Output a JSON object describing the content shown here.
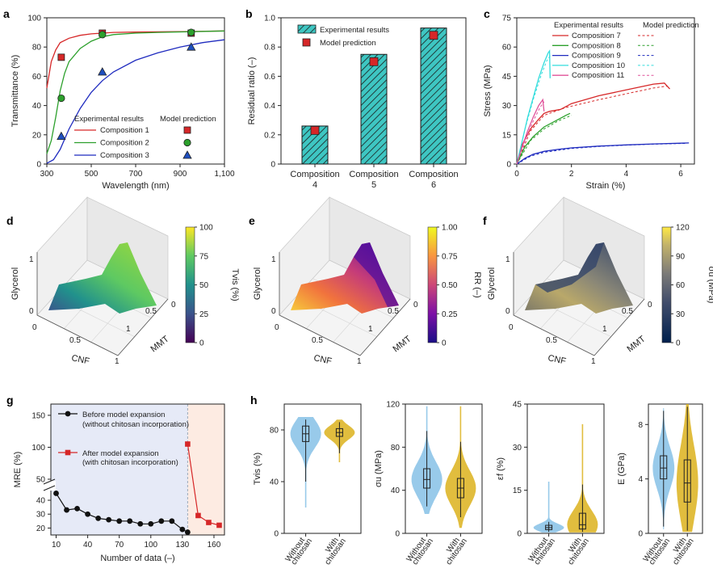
{
  "chart_data": [
    {
      "panel": "a",
      "type": "line",
      "xlabel": "Wavelength (nm)",
      "ylabel": "Transmittance (%)",
      "xlim": [
        300,
        1100
      ],
      "ylim": [
        0,
        100
      ],
      "xticks": [
        "300",
        "500",
        "700",
        "900",
        "1,100"
      ],
      "yticks": [
        "0",
        "20",
        "40",
        "60",
        "80",
        "100"
      ],
      "legend_exp": "Experimental results",
      "legend_model": "Model prediction",
      "series": [
        {
          "name": "Composition 1",
          "color": "#d62728",
          "marker": "square",
          "color_model": "#d62728",
          "x": [
            300,
            320,
            340,
            360,
            400,
            450,
            500,
            550,
            600,
            700,
            800,
            950,
            1100
          ],
          "y": [
            52,
            70,
            78,
            83,
            86,
            88,
            89,
            89.5,
            90,
            90.2,
            90.4,
            90.6,
            91
          ],
          "model_x": [
            365,
            550,
            950
          ],
          "model_y": [
            73,
            89.5,
            89.5
          ]
        },
        {
          "name": "Composition 2",
          "color": "#2ca02c",
          "marker": "circle",
          "color_model": "#2ca02c",
          "x": [
            300,
            320,
            340,
            360,
            380,
            400,
            450,
            500,
            550,
            600,
            700,
            800,
            950,
            1100
          ],
          "y": [
            7,
            16,
            32,
            50,
            62,
            70,
            79,
            84,
            87,
            88.5,
            89.5,
            90,
            90.5,
            91
          ],
          "model_x": [
            365,
            550,
            950
          ],
          "model_y": [
            45,
            88.5,
            90
          ]
        },
        {
          "name": "Composition 3",
          "color": "#1f2bbf",
          "marker": "triangle",
          "color_model": "#1f4fbf",
          "x": [
            300,
            330,
            360,
            400,
            450,
            500,
            550,
            600,
            700,
            800,
            900,
            1000,
            1100
          ],
          "y": [
            0.5,
            3,
            10,
            24,
            38,
            49,
            57,
            63,
            71,
            76,
            80,
            83,
            85
          ],
          "model_x": [
            365,
            550,
            950
          ],
          "model_y": [
            19,
            63,
            80
          ]
        }
      ]
    },
    {
      "panel": "b",
      "type": "bar",
      "ylabel": "Residual ratio (–)",
      "ylim": [
        0,
        1.0
      ],
      "yticks": [
        "0",
        "0.2",
        "0.4",
        "0.6",
        "0.8",
        "1.0"
      ],
      "categories": [
        "Composition 4",
        "Composition 5",
        "Composition 6"
      ],
      "cat_line1": [
        "Composition",
        "Composition",
        "Composition"
      ],
      "cat_line2": [
        "4",
        "5",
        "6"
      ],
      "series": [
        {
          "name": "Experimental results",
          "values": [
            0.26,
            0.75,
            0.93
          ],
          "color": "#3ec6c2"
        },
        {
          "name": "Model prediction",
          "values": [
            0.23,
            0.7,
            0.88
          ],
          "color": "#d62728"
        }
      ]
    },
    {
      "panel": "c",
      "type": "line",
      "xlabel": "Strain (%)",
      "ylabel": "Stress (MPa)",
      "xlim": [
        0,
        6.5
      ],
      "ylim": [
        0,
        75
      ],
      "xticks": [
        "0",
        "2",
        "4",
        "6"
      ],
      "yticks": [
        "0",
        "15",
        "30",
        "45",
        "60",
        "75"
      ],
      "legend_exp": "Experimental results",
      "legend_model": "Model prediction",
      "series": [
        {
          "name": "Composition 7",
          "color": "#d62728",
          "x": [
            0,
            0.2,
            0.5,
            0.8,
            1.0,
            1.2,
            1.6,
            2.0,
            3.0,
            4.0,
            5.0,
            5.4,
            5.6
          ],
          "y": [
            0,
            10,
            18,
            23,
            26,
            27,
            28,
            31,
            35,
            38,
            41,
            41.5,
            38.5
          ],
          "model_x": [
            0,
            0.5,
            1.0,
            1.8,
            3.0,
            4.0,
            5.0,
            5.5
          ],
          "model_y": [
            0,
            17,
            25,
            29,
            33,
            36,
            39,
            40
          ]
        },
        {
          "name": "Composition 8",
          "color": "#2ca02c",
          "x": [
            0,
            0.3,
            0.6,
            1.0,
            1.4,
            1.8,
            1.95
          ],
          "y": [
            0,
            9,
            14,
            19,
            22,
            25,
            26
          ],
          "model_x": [
            0,
            0.5,
            1.0,
            1.5,
            2.0
          ],
          "model_y": [
            0,
            12,
            18,
            22,
            25
          ]
        },
        {
          "name": "Composition 9",
          "color": "#1f2bbf",
          "x": [
            0,
            0.3,
            0.6,
            1.0,
            1.5,
            2.0,
            3.0,
            4.0,
            5.0,
            6.0,
            6.3
          ],
          "y": [
            0,
            3,
            5,
            6.5,
            7.5,
            8.3,
            9.2,
            9.8,
            10.3,
            10.7,
            10.8
          ],
          "model_x": [
            0,
            0.5,
            1.0,
            2.0,
            3.0,
            4.0,
            5.0,
            6.2
          ],
          "model_y": [
            0,
            4,
            6,
            8,
            9,
            9.7,
            10.2,
            10.6
          ]
        },
        {
          "name": "Composition 10",
          "color": "#33dddd",
          "x": [
            0,
            0.2,
            0.4,
            0.6,
            0.8,
            1.0,
            1.15,
            1.2,
            1.22
          ],
          "y": [
            0,
            12,
            24,
            34,
            44,
            52,
            57,
            58,
            44
          ],
          "model_x": [
            0,
            0.3,
            0.6,
            0.9,
            1.1,
            1.25
          ],
          "model_y": [
            0,
            18,
            33,
            46,
            53,
            56
          ]
        },
        {
          "name": "Composition 11",
          "color": "#e0529a",
          "x": [
            0,
            0.2,
            0.4,
            0.6,
            0.8,
            0.95,
            1.0
          ],
          "y": [
            0,
            9,
            17,
            24,
            30,
            33,
            27
          ],
          "model_x": [
            0,
            0.3,
            0.6,
            0.85,
            1.0
          ],
          "model_y": [
            0,
            12,
            22,
            29,
            32
          ]
        }
      ]
    },
    {
      "panel": "d",
      "type": "surface3d",
      "xlabel": "CNF",
      "ylabel": "MMT",
      "zlabel": "Glycerol",
      "cbar_label": "Tvis (%)",
      "cbar_ticks": [
        "0",
        "25",
        "50",
        "75",
        "100"
      ],
      "cbar_range": [
        0,
        100
      ],
      "axis_ticks": {
        "x": [
          "0",
          "0.5",
          "1"
        ],
        "y": [
          "0",
          "0.5",
          "1"
        ],
        "z": [
          "0",
          "1"
        ]
      }
    },
    {
      "panel": "e",
      "type": "surface3d",
      "xlabel": "CNF",
      "ylabel": "MMT",
      "zlabel": "Glycerol",
      "cbar_label": "RR (–)",
      "cbar_ticks": [
        "0",
        "0.25",
        "0.50",
        "0.75",
        "1.00"
      ],
      "cbar_range": [
        0,
        1
      ],
      "axis_ticks": {
        "x": [
          "0",
          "0.5",
          "1"
        ],
        "y": [
          "0",
          "0.5",
          "1"
        ],
        "z": [
          "0",
          "1"
        ]
      }
    },
    {
      "panel": "f",
      "type": "surface3d",
      "xlabel": "CNF",
      "ylabel": "MMT",
      "zlabel": "Glycerol",
      "cbar_label": "σu (MPa)",
      "cbar_ticks": [
        "0",
        "30",
        "60",
        "90",
        "120"
      ],
      "cbar_range": [
        0,
        120
      ],
      "axis_ticks": {
        "x": [
          "0",
          "0.5",
          "1"
        ],
        "y": [
          "0",
          "0.5",
          "1"
        ],
        "z": [
          "0",
          "1"
        ]
      }
    },
    {
      "panel": "g",
      "type": "line",
      "xlabel": "Number of data (–)",
      "ylabel": "MRE (%)",
      "xticks": [
        "10",
        "40",
        "70",
        "100",
        "130",
        "160"
      ],
      "yticks_lower": [
        "20",
        "30",
        "40"
      ],
      "yticks_upper": [
        "50",
        "100",
        "150"
      ],
      "series": [
        {
          "name": "Before model expansion",
          "sub": "(without chitosan incorporation)",
          "color": "#111111",
          "marker": "circle",
          "x": [
            10,
            20,
            30,
            40,
            50,
            60,
            70,
            80,
            90,
            100,
            110,
            120,
            130,
            135
          ],
          "y": [
            45,
            33,
            34,
            30,
            27,
            26,
            25,
            25,
            23,
            23,
            25,
            25,
            19,
            17
          ]
        },
        {
          "name": "After model expansion",
          "sub": "(with chitosan incorporation)",
          "color": "#d62728",
          "marker": "square",
          "x": [
            135,
            145,
            155,
            165
          ],
          "y": [
            105,
            29,
            24,
            22
          ]
        }
      ]
    },
    {
      "panel": "h",
      "type": "violin",
      "categories": [
        "Without chitosan",
        "With chitosan"
      ],
      "cat_line1": [
        "Without",
        "With"
      ],
      "cat_line2": [
        "chitosan",
        "chitosan"
      ],
      "colors": [
        "#86c1e6",
        "#dcb21c"
      ],
      "subplots": [
        {
          "ylabel": "Tvis (%)",
          "ylim": [
            0,
            100
          ],
          "yticks": [
            "0",
            "40",
            "80"
          ],
          "median": [
            77,
            78
          ],
          "q1": [
            71,
            75
          ],
          "q3": [
            83,
            81
          ],
          "whisk_lo": [
            40,
            62
          ],
          "whisk_hi": [
            88,
            86
          ],
          "min": [
            20,
            55
          ],
          "max": [
            90,
            88
          ]
        },
        {
          "ylabel": "σu (MPa)",
          "ylim": [
            0,
            120
          ],
          "yticks": [
            "0",
            "40",
            "80",
            "120"
          ],
          "median": [
            50,
            42
          ],
          "q1": [
            42,
            33
          ],
          "q3": [
            60,
            51
          ],
          "whisk_lo": [
            25,
            15
          ],
          "whisk_hi": [
            95,
            85
          ],
          "min": [
            18,
            5
          ],
          "max": [
            118,
            118
          ]
        },
        {
          "ylabel": "εf (%)",
          "ylim": [
            0,
            45
          ],
          "yticks": [
            "0",
            "15",
            "30",
            "45"
          ],
          "median": [
            2,
            3
          ],
          "q1": [
            1.3,
            1.5
          ],
          "q3": [
            2.8,
            7
          ],
          "whisk_lo": [
            0.5,
            0.5
          ],
          "whisk_hi": [
            4,
            17
          ],
          "min": [
            0.3,
            0.3
          ],
          "max": [
            18,
            38
          ]
        },
        {
          "ylabel": "E (GPa)",
          "ylim": [
            0,
            9.5
          ],
          "yticks": [
            "0",
            "4",
            "8"
          ],
          "median": [
            4.8,
            3.7
          ],
          "q1": [
            4.0,
            2.3
          ],
          "q3": [
            5.7,
            5.4
          ],
          "whisk_lo": [
            0.5,
            0.2
          ],
          "whisk_hi": [
            9.0,
            9.3
          ],
          "min": [
            0.3,
            0.1
          ],
          "max": [
            9.2,
            9.5
          ]
        }
      ]
    }
  ]
}
